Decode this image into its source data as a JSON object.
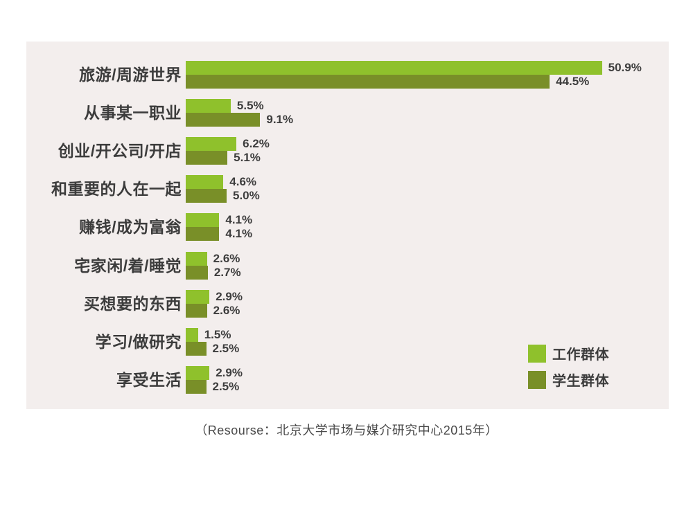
{
  "chart_data": {
    "type": "bar",
    "orientation": "horizontal",
    "title": "",
    "categories": [
      "旅游/周游世界",
      "从事某一职业",
      "创业/开公司/开店",
      "和重要的人在一起",
      "赚钱/成为富翁",
      "宅家闲/着/睡觉",
      "买想要的东西",
      "学习/做研究",
      "享受生活"
    ],
    "series": [
      {
        "name": "工作群体",
        "color": "#8fc12c",
        "values": [
          50.9,
          5.5,
          6.2,
          4.6,
          4.1,
          2.6,
          2.9,
          1.5,
          2.9
        ]
      },
      {
        "name": "学生群体",
        "color": "#798f28",
        "values": [
          44.5,
          9.1,
          5.1,
          5.0,
          4.1,
          2.7,
          2.6,
          2.5,
          2.5
        ]
      }
    ],
    "value_suffix": "%",
    "xlim": [
      0,
      55
    ],
    "grid": false,
    "legend_position": "bottom-right",
    "panel_background": "#f3eeed",
    "text_color": "#3c3c3c"
  },
  "legend": {
    "items": [
      {
        "label": "工作群体",
        "color": "#8fc12c"
      },
      {
        "label": "学生群体",
        "color": "#798f28"
      }
    ]
  },
  "footer": {
    "source": "（Resourse：北京大学市场与媒介研究中心2015年）"
  }
}
